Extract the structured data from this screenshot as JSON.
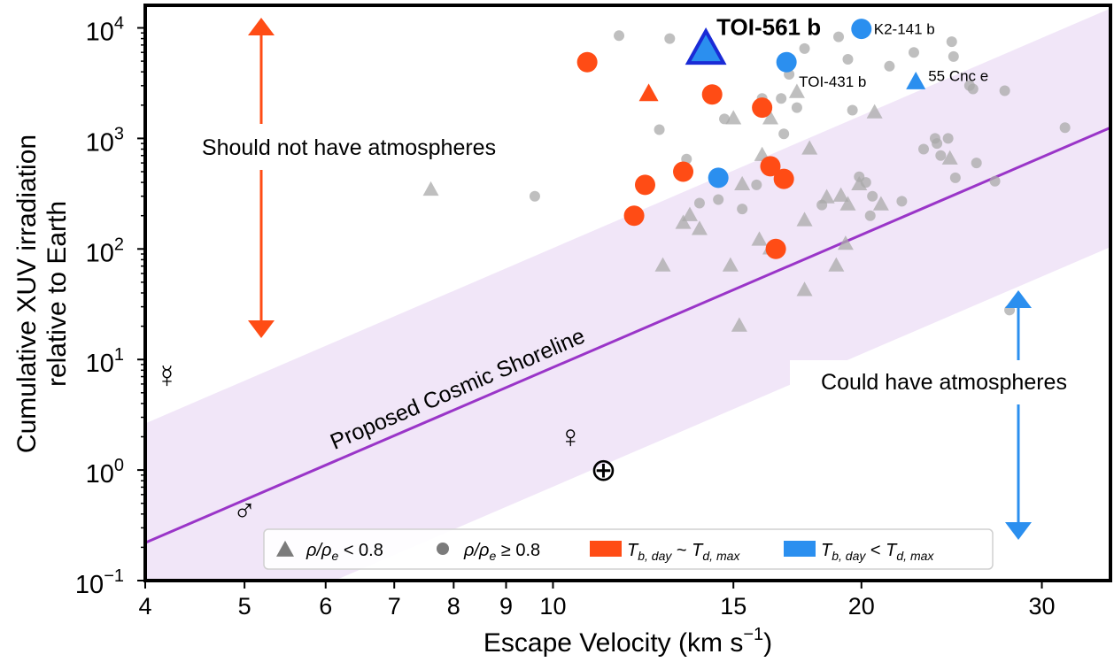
{
  "chart_data": {
    "type": "scatter",
    "xlabel_main": "Escape Velocity (km s",
    "xlabel_sup": "−1",
    "xlabel_end": ")",
    "ylabel_line1": "Cumulative XUV irradiation",
    "ylabel_line2": "relative to Earth",
    "x_scale": "log",
    "y_scale": "log",
    "xlim": [
      4,
      35
    ],
    "ylim": [
      0.1,
      16000
    ],
    "x_ticks": [
      {
        "value": 4,
        "label": "4"
      },
      {
        "value": 5,
        "label": "5"
      },
      {
        "value": 6,
        "label": "6"
      },
      {
        "value": 7,
        "label": "7"
      },
      {
        "value": 8,
        "label": "8"
      },
      {
        "value": 9,
        "label": "9"
      },
      {
        "value": 10,
        "label": "10"
      },
      {
        "value": 15,
        "label": "15"
      },
      {
        "value": 20,
        "label": "20"
      },
      {
        "value": 30,
        "label": "30"
      }
    ],
    "y_ticks": [
      {
        "value": 0.1,
        "base": "10",
        "exp": "−1"
      },
      {
        "value": 1,
        "base": "10",
        "exp": "0"
      },
      {
        "value": 10,
        "base": "10",
        "exp": "1"
      },
      {
        "value": 100,
        "base": "10",
        "exp": "2"
      },
      {
        "value": 1000,
        "base": "10",
        "exp": "3"
      },
      {
        "value": 10000,
        "base": "10",
        "exp": "4"
      }
    ],
    "shoreline": {
      "label": "Proposed Cosmic Shoreline",
      "p1": [
        4,
        0.22
      ],
      "p2": [
        35,
        1250
      ],
      "band_factor": 12,
      "line_color": "#9a35c8",
      "band_color": "#f1e6f8"
    },
    "colors": {
      "gray": "#a9a9a9",
      "orange": "#ff4c15",
      "blue": "#2b8fef",
      "dark_blue": "#1a2bd6",
      "arrow_orange": "#ff4c15",
      "arrow_blue": "#2b8fef"
    },
    "annotations": {
      "should_not": "Should not have atmospheres",
      "could_have": "Could have atmospheres"
    },
    "gray_triangles": [
      [
        7.6,
        340
      ],
      [
        12.8,
        70
      ],
      [
        13.4,
        170
      ],
      [
        13.6,
        200
      ],
      [
        13.9,
        150
      ],
      [
        14.9,
        70
      ],
      [
        15.0,
        1500
      ],
      [
        15.3,
        380
      ],
      [
        15.2,
        20
      ],
      [
        15.9,
        120
      ],
      [
        16.0,
        700
      ],
      [
        16.3,
        1500
      ],
      [
        16.3,
        100
      ],
      [
        17.3,
        2600
      ],
      [
        17.6,
        42
      ],
      [
        17.6,
        180
      ],
      [
        17.8,
        800
      ],
      [
        18.5,
        290
      ],
      [
        18.9,
        70
      ],
      [
        19.1,
        300
      ],
      [
        19.3,
        110
      ],
      [
        19.4,
        250
      ],
      [
        19.9,
        380
      ],
      [
        20.6,
        1700
      ],
      [
        20.9,
        250
      ],
      [
        24.4,
        650
      ]
    ],
    "gray_circles": [
      [
        9.6,
        300
      ],
      [
        11.6,
        8500
      ],
      [
        12.7,
        1200
      ],
      [
        13.0,
        8000
      ],
      [
        13.5,
        650
      ],
      [
        13.9,
        260
      ],
      [
        14.5,
        280
      ],
      [
        14.7,
        1500
      ],
      [
        15.3,
        230
      ],
      [
        15.8,
        380
      ],
      [
        16.0,
        2300
      ],
      [
        16.7,
        2300
      ],
      [
        16.8,
        1100
      ],
      [
        17.0,
        3800
      ],
      [
        17.3,
        1900
      ],
      [
        17.6,
        6500
      ],
      [
        18.3,
        250
      ],
      [
        19.0,
        8300
      ],
      [
        19.4,
        5200
      ],
      [
        19.6,
        1800
      ],
      [
        19.9,
        450
      ],
      [
        20.2,
        400
      ],
      [
        20.4,
        200
      ],
      [
        20.5,
        300
      ],
      [
        21.3,
        4500
      ],
      [
        21.9,
        270
      ],
      [
        22.5,
        6000
      ],
      [
        23.0,
        800
      ],
      [
        23.6,
        1000
      ],
      [
        23.7,
        900
      ],
      [
        23.9,
        700
      ],
      [
        24.3,
        1000
      ],
      [
        24.5,
        7500
      ],
      [
        24.6,
        5500
      ],
      [
        24.7,
        440
      ],
      [
        25.5,
        3000
      ],
      [
        25.7,
        2800
      ],
      [
        25.9,
        600
      ],
      [
        27.0,
        410
      ],
      [
        27.6,
        2700
      ],
      [
        27.9,
        28
      ],
      [
        31.6,
        1250
      ]
    ],
    "orange_circles": [
      [
        10.8,
        4900
      ],
      [
        12.3,
        380
      ],
      [
        12.0,
        200
      ],
      [
        13.4,
        500
      ],
      [
        14.3,
        2500
      ],
      [
        16.0,
        1900
      ],
      [
        16.3,
        560
      ],
      [
        16.5,
        100
      ],
      [
        16.8,
        430
      ]
    ],
    "orange_triangles": [
      [
        12.4,
        2500
      ]
    ],
    "blue_circles": [
      [
        14.5,
        440
      ],
      [
        16.9,
        4900
      ]
    ],
    "blue_triangles": [
      [
        22.6,
        3200
      ]
    ],
    "highlight": {
      "label": "TOI-561 b",
      "x": 14.1,
      "y": 6200
    },
    "planet_labels": [
      {
        "text": "K2-141 b",
        "x": 20.0,
        "y": 9800,
        "dx": 14,
        "dy": 0
      },
      {
        "text": "TOI-431 b",
        "x": 16.9,
        "y": 4900,
        "dx": 14,
        "dy": 22
      },
      {
        "text": "55 Cnc e",
        "x": 22.6,
        "y": 3200,
        "dx": 14,
        "dy": -8
      }
    ],
    "k2_141b": {
      "x": 20.0,
      "y": 9800
    },
    "solar_system": [
      {
        "name": "Mercury",
        "symbol": "☿",
        "x": 4.2,
        "y": 7.0
      },
      {
        "name": "Venus",
        "symbol": "♀",
        "x": 10.4,
        "y": 2.0
      },
      {
        "name": "Earth",
        "symbol": "⊕",
        "x": 11.2,
        "y": 1.0
      },
      {
        "name": "Mars",
        "symbol": "♂",
        "x": 5.0,
        "y": 0.43
      }
    ],
    "legend": {
      "placement": "bottom-center",
      "items": [
        {
          "kind": "triangle",
          "color": "#7b7b7b",
          "label": "ρ/ρ",
          "sub": "e",
          "rest": " < 0.8"
        },
        {
          "kind": "circle",
          "color": "#7b7b7b",
          "label": "ρ/ρ",
          "sub": "e",
          "rest": " ≥ 0.8"
        },
        {
          "kind": "rect",
          "color": "#ff4c15",
          "label": "T",
          "sub": "b, day",
          "rest": " ~ ",
          "label2": "T",
          "sub2": "d, max"
        },
        {
          "kind": "rect",
          "color": "#2b8fef",
          "label": "T",
          "sub": "b, day",
          "rest": " < ",
          "label2": "T",
          "sub2": "d, max"
        }
      ]
    }
  }
}
